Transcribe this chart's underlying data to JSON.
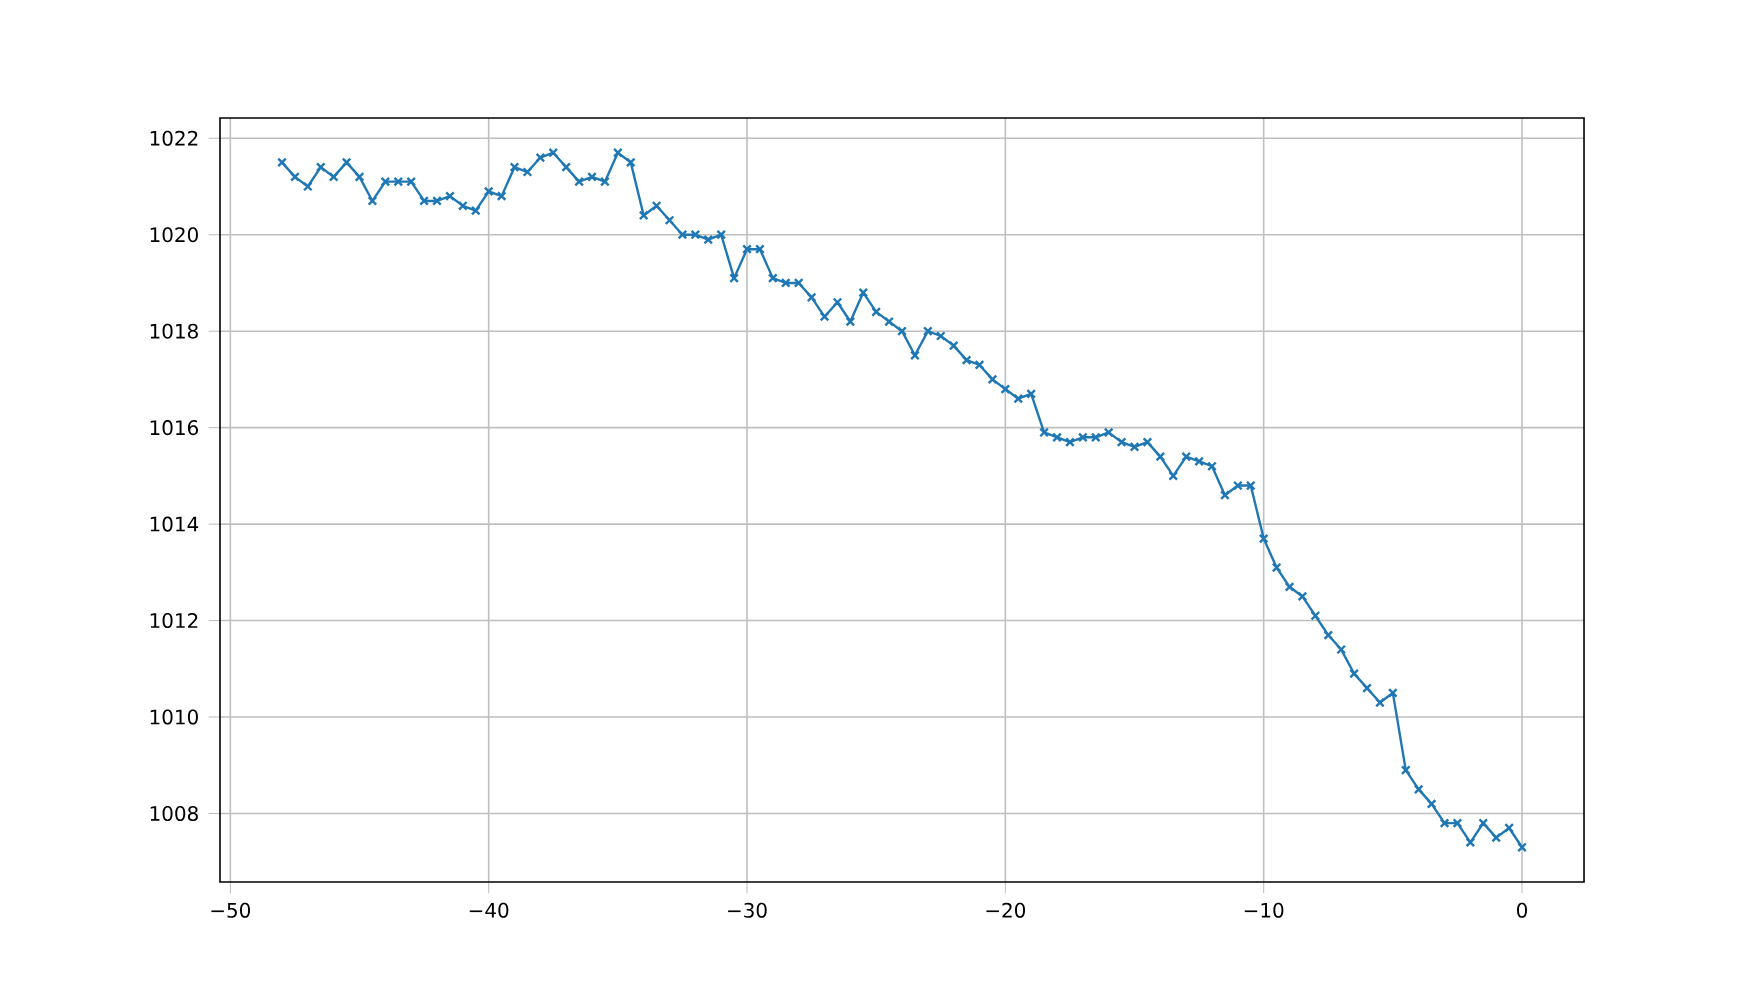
{
  "chart_data": {
    "type": "line",
    "color": "#1f77b4",
    "marker": "cross",
    "line_style": "solid",
    "grid": true,
    "x": [
      -48,
      -47.5,
      -47,
      -46.5,
      -46,
      -45.5,
      -45,
      -44.5,
      -44,
      -43.5,
      -43,
      -42.5,
      -42,
      -41.5,
      -41,
      -40.5,
      -40,
      -39.5,
      -39,
      -38.5,
      -38,
      -37.5,
      -37,
      -36.5,
      -36,
      -35.5,
      -35,
      -34.5,
      -34,
      -33.5,
      -33,
      -32.5,
      -32,
      -31.5,
      -31,
      -30.5,
      -30,
      -29.5,
      -29,
      -28.5,
      -28,
      -27.5,
      -27,
      -26.5,
      -26,
      -25.5,
      -25,
      -24.5,
      -24,
      -23.5,
      -23,
      -22.5,
      -22,
      -21.5,
      -21,
      -20.5,
      -20,
      -19.5,
      -19,
      -18.5,
      -18,
      -17.5,
      -17,
      -16.5,
      -16,
      -15.5,
      -15,
      -14.5,
      -14,
      -13.5,
      -13,
      -12.5,
      -12,
      -11.5,
      -11,
      -10.5,
      -10,
      -9.5,
      -9,
      -8.5,
      -8,
      -7.5,
      -7,
      -6.5,
      -6,
      -5.5,
      -5,
      -4.5,
      -4,
      -3.5,
      -3,
      -2.5,
      -2,
      -1.5,
      -1,
      -0.5,
      0
    ],
    "values": [
      1021.5,
      1021.2,
      1021.0,
      1021.4,
      1021.2,
      1021.5,
      1021.2,
      1020.7,
      1021.1,
      1021.1,
      1021.1,
      1020.7,
      1020.7,
      1020.8,
      1020.6,
      1020.5,
      1020.9,
      1020.8,
      1021.4,
      1021.3,
      1021.6,
      1021.7,
      1021.4,
      1021.1,
      1021.2,
      1021.1,
      1021.7,
      1021.5,
      1020.4,
      1020.6,
      1020.3,
      1020.0,
      1020.0,
      1019.9,
      1020.0,
      1019.1,
      1019.7,
      1019.7,
      1019.1,
      1019.0,
      1019.0,
      1018.7,
      1018.3,
      1018.6,
      1018.2,
      1018.8,
      1018.4,
      1018.2,
      1018.0,
      1017.5,
      1018.0,
      1017.9,
      1017.7,
      1017.4,
      1017.3,
      1017.0,
      1016.8,
      1016.6,
      1016.7,
      1015.9,
      1015.8,
      1015.7,
      1015.8,
      1015.8,
      1015.9,
      1015.7,
      1015.6,
      1015.7,
      1015.4,
      1015.0,
      1015.4,
      1015.3,
      1015.2,
      1014.6,
      1014.8,
      1014.8,
      1013.7,
      1013.1,
      1012.7,
      1012.5,
      1012.1,
      1011.7,
      1011.4,
      1010.9,
      1010.6,
      1010.3,
      1010.5,
      1008.9,
      1008.5,
      1008.2,
      1007.8,
      1007.8,
      1007.4,
      1007.8,
      1007.5,
      1007.7,
      1007.3
    ],
    "xlim": [
      -50.4,
      2.4
    ],
    "ylim": [
      1006.58,
      1022.42
    ],
    "xticks": [
      {
        "value": -50,
        "label": "−50"
      },
      {
        "value": -40,
        "label": "−40"
      },
      {
        "value": -30,
        "label": "−30"
      },
      {
        "value": -20,
        "label": "−20"
      },
      {
        "value": -10,
        "label": "−10"
      },
      0
    ],
    "yticks": [
      1008,
      1010,
      1012,
      1014,
      1016,
      1018,
      1020,
      1022
    ]
  }
}
